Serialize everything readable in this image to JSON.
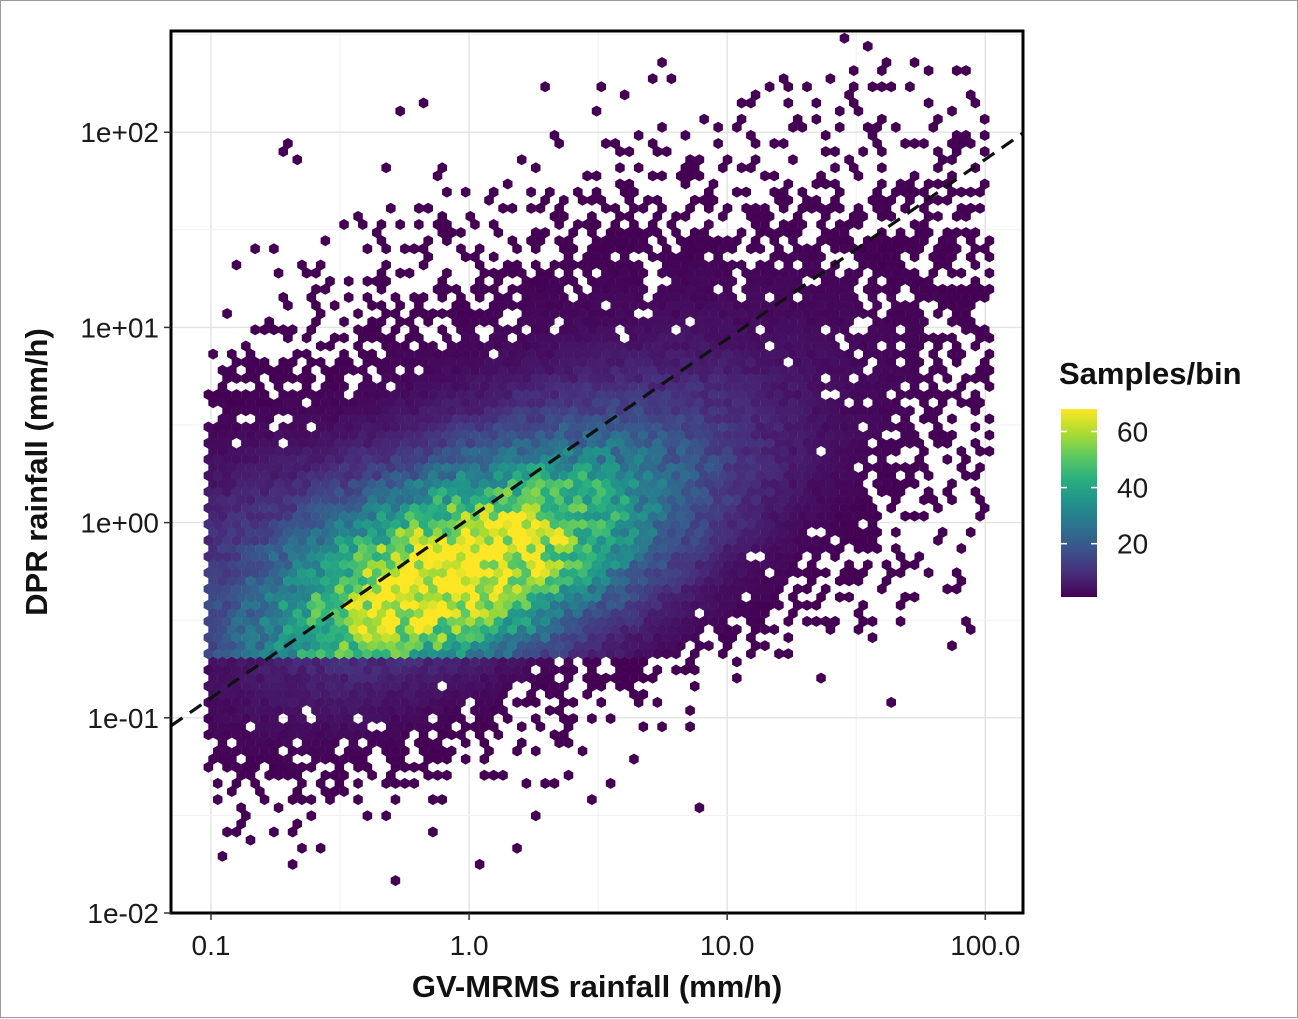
{
  "chart_data": {
    "type": "heatmap",
    "subtype": "hexbin-scatter",
    "xlabel": "GV-MRMS rainfall (mm/h)",
    "ylabel": "DPR rainfall (mm/h)",
    "x_scale": "log10",
    "y_scale": "log10",
    "xlim": [
      0.07,
      140
    ],
    "ylim": [
      0.01,
      330
    ],
    "x_ticks": [
      {
        "value": 0.1,
        "label": "0.1"
      },
      {
        "value": 1,
        "label": "1.0"
      },
      {
        "value": 10,
        "label": "10.0"
      },
      {
        "value": 100,
        "label": "100.0"
      }
    ],
    "y_ticks": [
      {
        "value": 0.01,
        "label": "1e-02"
      },
      {
        "value": 0.1,
        "label": "1e-01"
      },
      {
        "value": 1,
        "label": "1e+00"
      },
      {
        "value": 10,
        "label": "1e+01"
      },
      {
        "value": 100,
        "label": "1e+02"
      }
    ],
    "grid": true,
    "reference_line": {
      "style": "dashed",
      "color": "#111111",
      "intercept": 1.05,
      "slope": 0.92
    },
    "density": {
      "core_x": 0.9,
      "core_y": 0.55,
      "peak_count": 65,
      "y_floor_dense": 0.2,
      "x_min_data": 0.1,
      "x_max_data": 100,
      "y_min_data": 0.015,
      "y_max_data": 300
    },
    "colorbar": {
      "title": "Samples/bin",
      "min": 1,
      "max": 68,
      "ticks": [
        {
          "value": 20,
          "label": "20"
        },
        {
          "value": 40,
          "label": "40"
        },
        {
          "value": 60,
          "label": "60"
        }
      ],
      "colormap": "viridis",
      "colors": [
        "#440154",
        "#472d7b",
        "#3b528b",
        "#2c728e",
        "#21918c",
        "#28ae80",
        "#5ec962",
        "#addc30",
        "#fde725"
      ],
      "placement": "right"
    }
  }
}
